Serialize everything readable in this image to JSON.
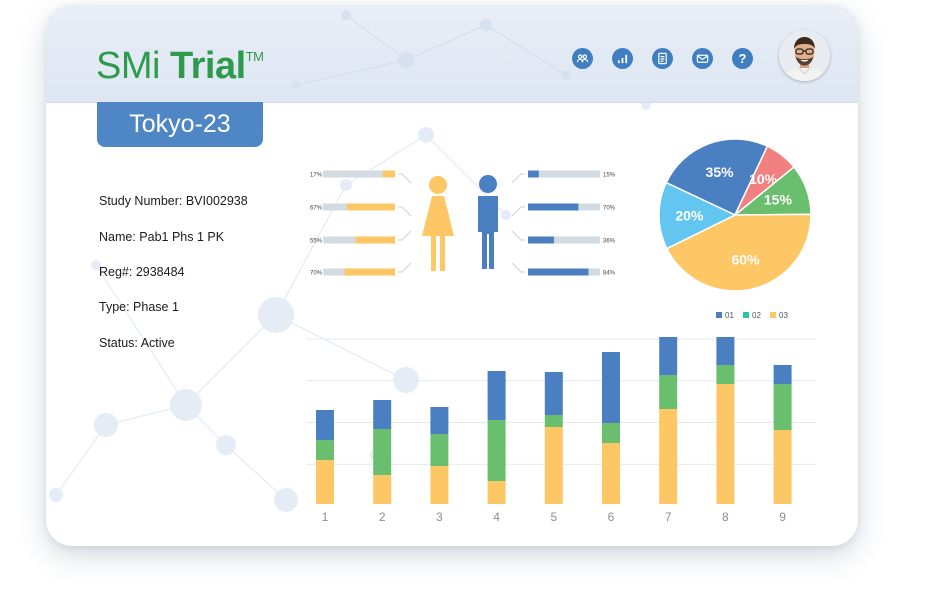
{
  "header": {
    "logo": {
      "smi": "SMi",
      "trial": "Trial",
      "tm": "TM"
    },
    "icons": [
      {
        "name": "community-icon",
        "label": "community"
      },
      {
        "name": "analytics-icon",
        "label": "analytics"
      },
      {
        "name": "document-icon",
        "label": "documents"
      },
      {
        "name": "mail-icon",
        "label": "messages"
      },
      {
        "name": "help-icon",
        "label": "?"
      }
    ]
  },
  "site": {
    "name": "Tokyo-23"
  },
  "study": {
    "number": "Study Number: BVI002938",
    "name": "Name: Pab1 Phs 1 PK",
    "reg": "Reg#: 2938484",
    "type": "Type: Phase 1",
    "status": "Status: Active"
  },
  "colors": {
    "blue": "#4a7fc2",
    "green": "#6abf6e",
    "yellow": "#fdc765",
    "red": "#f28080",
    "cyan": "#62c6f0",
    "female": "#fdc765",
    "male": "#4a7fc2",
    "track": "#d3dbe2"
  },
  "demographics": {
    "female": [
      {
        "label": "17%",
        "value": 17
      },
      {
        "label": "67%",
        "value": 67
      },
      {
        "label": "55%",
        "value": 55
      },
      {
        "label": "70%",
        "value": 70
      }
    ],
    "male": [
      {
        "label": "15%",
        "value": 15
      },
      {
        "label": "70%",
        "value": 70
      },
      {
        "label": "36%",
        "value": 36
      },
      {
        "label": "84%",
        "value": 84
      }
    ]
  },
  "chart_data": [
    {
      "type": "pie",
      "slices": [
        {
          "label": "35%",
          "value": 35,
          "color": "#4a7fc2"
        },
        {
          "label": "10%",
          "value": 10,
          "color": "#f28080"
        },
        {
          "label": "15%",
          "value": 15,
          "color": "#6abf6e"
        },
        {
          "label": "60%",
          "value": 60,
          "color": "#fdc765"
        },
        {
          "label": "20%",
          "value": 20,
          "color": "#62c6f0"
        }
      ]
    },
    {
      "type": "bar",
      "stacked": true,
      "categories": [
        "1",
        "2",
        "3",
        "4",
        "5",
        "6",
        "7",
        "8",
        "9"
      ],
      "series": [
        {
          "name": "03",
          "color": "#fdc765",
          "values": [
            44,
            29,
            38,
            23,
            77,
            61,
            95,
            120,
            74
          ]
        },
        {
          "name": "02",
          "color": "#6abf6e",
          "values": [
            20,
            46,
            32,
            61,
            12,
            20,
            34,
            19,
            46
          ]
        },
        {
          "name": "01",
          "color": "#4a7fc2",
          "values": [
            30,
            29,
            27,
            49,
            43,
            71,
            38,
            28,
            19
          ]
        }
      ],
      "legend": {
        "entries": [
          "01",
          "02",
          "03"
        ],
        "colors": [
          "#4a7fc2",
          "#2ebfa5",
          "#fdc765"
        ],
        "placement": "top-right"
      },
      "grid": true
    }
  ]
}
